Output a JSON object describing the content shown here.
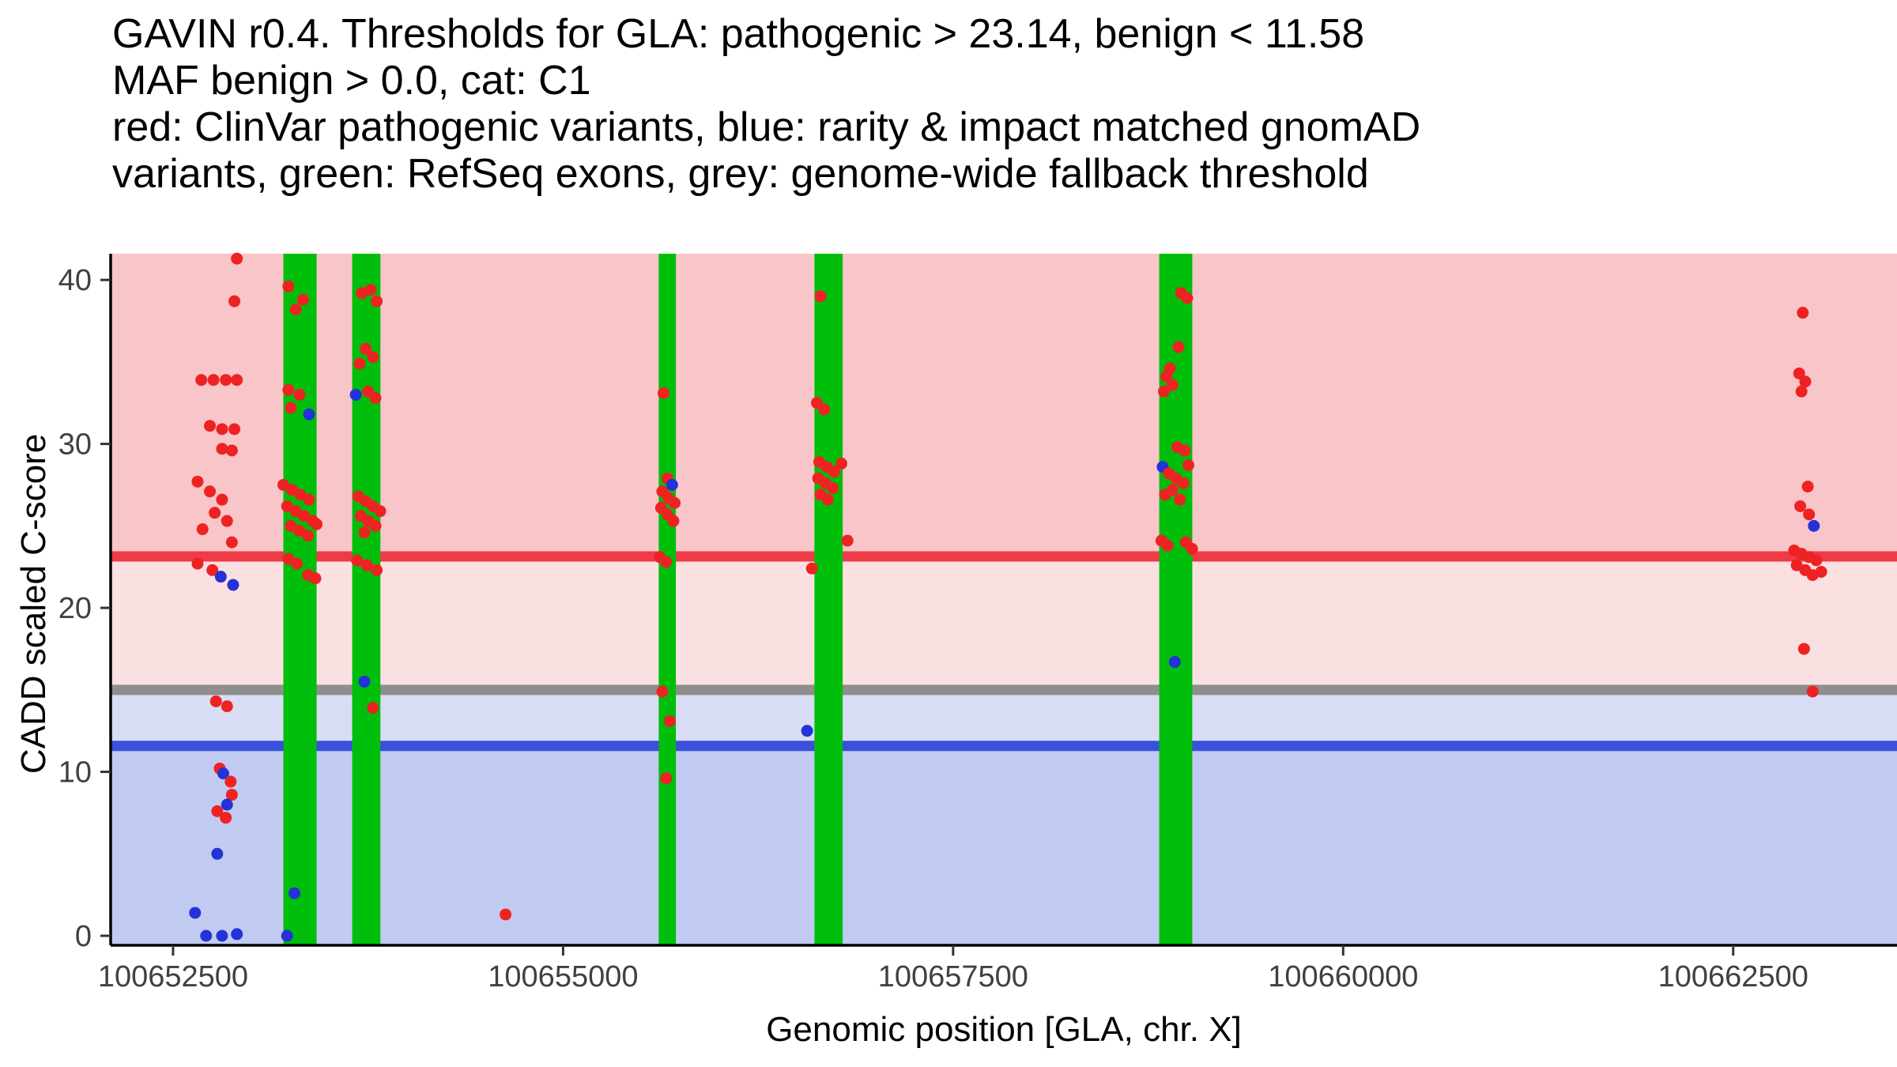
{
  "title": {
    "line1": "GAVIN r0.4. Thresholds for GLA: pathogenic > 23.14, benign < 11.58",
    "line2": "MAF benign > 0.0, cat: C1",
    "line3": "red: ClinVar pathogenic variants, blue: rarity & impact matched gnomAD",
    "line4": "variants, green: RefSeq exons, grey: genome-wide fallback threshold"
  },
  "chart_data": {
    "type": "scatter",
    "title": "GAVIN r0.4. Thresholds for GLA: pathogenic > 23.14, benign < 11.58 MAF benign > 0.0, cat: C1 red: ClinVar pathogenic variants, blue: rarity & impact matched gnomAD variants, green: RefSeq exons, grey: genome-wide fallback threshold",
    "xlabel": "Genomic position [GLA, chr. X]",
    "ylabel": "CADD scaled C-score",
    "x_ticks": [
      100652500,
      100655000,
      100657500,
      100660000,
      100662500
    ],
    "y_ticks": [
      0,
      10,
      20,
      30,
      40
    ],
    "xlim": [
      100652100,
      100663550
    ],
    "ylim": [
      0,
      41.6
    ],
    "grid": false,
    "legend_position": "none",
    "thresholds": {
      "pathogenic": {
        "label": "pathogenic threshold",
        "value": 23.14,
        "color": "#EF3B46"
      },
      "genome_wide_fallback": {
        "label": "genome-wide fallback threshold",
        "value": 15,
        "color": "#8E8E8E"
      },
      "benign": {
        "label": "benign threshold",
        "value": 11.58,
        "color": "#3A50DC"
      }
    },
    "bands": [
      {
        "name": "pathogenic-zone",
        "from": 23.14,
        "to": 41.6,
        "color": "#F8C5C8"
      },
      {
        "name": "uncertain-upper-zone",
        "from": 15,
        "to": 23.14,
        "color": "#FBE0E2"
      },
      {
        "name": "uncertain-lower-zone",
        "from": 11.58,
        "to": 15,
        "color": "#D8DDF5"
      },
      {
        "name": "benign-zone",
        "from": 0,
        "to": 11.58,
        "color": "#C1CBF1"
      }
    ],
    "exon_color": "#00BE0C",
    "exons": [
      [
        100653207,
        100653420
      ],
      [
        100653648,
        100653829
      ],
      [
        100655613,
        100655723
      ],
      [
        100656611,
        100656792
      ],
      [
        100658821,
        100659033
      ]
    ],
    "point_colors": {
      "r": "#EE2222",
      "b": "#2432D8"
    },
    "series": [
      {
        "name": "ClinVar pathogenic variants",
        "key": "r",
        "color": "#EE2222"
      },
      {
        "name": "rarity & impact matched gnomAD variants",
        "key": "b",
        "color": "#2432D8"
      }
    ],
    "points": [
      [
        100652909,
        41.3,
        "r"
      ],
      [
        100652893,
        38.7,
        "r"
      ],
      [
        100652681,
        33.9,
        "r"
      ],
      [
        100652759,
        33.9,
        "r"
      ],
      [
        100652838,
        33.9,
        "r"
      ],
      [
        100652909,
        33.9,
        "r"
      ],
      [
        100652736,
        31.1,
        "r"
      ],
      [
        100652814,
        30.9,
        "r"
      ],
      [
        100652893,
        30.9,
        "r"
      ],
      [
        100652814,
        29.7,
        "r"
      ],
      [
        100652877,
        29.6,
        "r"
      ],
      [
        100652657,
        27.7,
        "r"
      ],
      [
        100652736,
        27.1,
        "r"
      ],
      [
        100652814,
        26.6,
        "r"
      ],
      [
        100652767,
        25.8,
        "r"
      ],
      [
        100652846,
        25.3,
        "r"
      ],
      [
        100652689,
        24.8,
        "r"
      ],
      [
        100652877,
        24.0,
        "r"
      ],
      [
        100652657,
        22.7,
        "r"
      ],
      [
        100652752,
        22.3,
        "r"
      ],
      [
        100652806,
        21.9,
        "b"
      ],
      [
        100652885,
        21.4,
        "b"
      ],
      [
        100652775,
        14.3,
        "r"
      ],
      [
        100652846,
        14.0,
        "r"
      ],
      [
        100652799,
        10.2,
        "r"
      ],
      [
        100652822,
        9.9,
        "b"
      ],
      [
        100652869,
        9.4,
        "r"
      ],
      [
        100652877,
        8.6,
        "r"
      ],
      [
        100652846,
        8.0,
        "b"
      ],
      [
        100652783,
        7.6,
        "r"
      ],
      [
        100652838,
        7.2,
        "r"
      ],
      [
        100652783,
        5.0,
        "b"
      ],
      [
        100652641,
        1.4,
        "b"
      ],
      [
        100652712,
        0,
        "b"
      ],
      [
        100652814,
        0,
        "b"
      ],
      [
        100652909,
        0.1,
        "b"
      ],
      [
        100653239,
        39.6,
        "r"
      ],
      [
        100653333,
        38.8,
        "r"
      ],
      [
        100653286,
        38.2,
        "r"
      ],
      [
        100653239,
        33.3,
        "r"
      ],
      [
        100653310,
        33.0,
        "r"
      ],
      [
        100653255,
        32.2,
        "r"
      ],
      [
        100653372,
        31.8,
        "b"
      ],
      [
        100653207,
        27.5,
        "r"
      ],
      [
        100653262,
        27.2,
        "r"
      ],
      [
        100653317,
        26.9,
        "r"
      ],
      [
        100653372,
        26.6,
        "r"
      ],
      [
        100653231,
        26.2,
        "r"
      ],
      [
        100653286,
        25.9,
        "r"
      ],
      [
        100653341,
        25.6,
        "r"
      ],
      [
        100653396,
        25.3,
        "r"
      ],
      [
        100653255,
        25.0,
        "r"
      ],
      [
        100653310,
        24.7,
        "r"
      ],
      [
        100653365,
        24.4,
        "r"
      ],
      [
        100653420,
        25.1,
        "r"
      ],
      [
        100653239,
        23.0,
        "r"
      ],
      [
        100653294,
        22.7,
        "r"
      ],
      [
        100653365,
        22.0,
        "r"
      ],
      [
        100653412,
        21.8,
        "r"
      ],
      [
        100653231,
        0,
        "b"
      ],
      [
        100653278,
        2.6,
        "b"
      ],
      [
        100653710,
        39.2,
        "r"
      ],
      [
        100653766,
        39.4,
        "r"
      ],
      [
        100653805,
        38.7,
        "r"
      ],
      [
        100653734,
        35.8,
        "r"
      ],
      [
        100653781,
        35.3,
        "r"
      ],
      [
        100653695,
        34.9,
        "r"
      ],
      [
        100653671,
        33.0,
        "b"
      ],
      [
        100653750,
        33.2,
        "r"
      ],
      [
        100653797,
        32.8,
        "r"
      ],
      [
        100653687,
        26.8,
        "r"
      ],
      [
        100653734,
        26.5,
        "r"
      ],
      [
        100653781,
        26.2,
        "r"
      ],
      [
        100653828,
        25.9,
        "r"
      ],
      [
        100653703,
        25.6,
        "r"
      ],
      [
        100653750,
        25.3,
        "r"
      ],
      [
        100653797,
        25.0,
        "r"
      ],
      [
        100653726,
        24.6,
        "r"
      ],
      [
        100653679,
        22.9,
        "r"
      ],
      [
        100653742,
        22.6,
        "r"
      ],
      [
        100653805,
        22.3,
        "r"
      ],
      [
        100653726,
        15.5,
        "b"
      ],
      [
        100653781,
        13.9,
        "r"
      ],
      [
        100654631,
        1.3,
        "r"
      ],
      [
        100655644,
        33.1,
        "r"
      ],
      [
        100655668,
        27.9,
        "r"
      ],
      [
        100655699,
        27.5,
        "b"
      ],
      [
        100655636,
        27.1,
        "r"
      ],
      [
        100655676,
        26.7,
        "r"
      ],
      [
        100655715,
        26.4,
        "r"
      ],
      [
        100655628,
        26.1,
        "r"
      ],
      [
        100655668,
        25.7,
        "r"
      ],
      [
        100655707,
        25.3,
        "r"
      ],
      [
        100655620,
        23.1,
        "r"
      ],
      [
        100655660,
        22.8,
        "r"
      ],
      [
        100655636,
        14.9,
        "r"
      ],
      [
        100655684,
        13.1,
        "r"
      ],
      [
        100655660,
        9.6,
        "r"
      ],
      [
        100656650,
        39.0,
        "r"
      ],
      [
        100656627,
        32.5,
        "r"
      ],
      [
        100656674,
        32.1,
        "r"
      ],
      [
        100656642,
        28.9,
        "r"
      ],
      [
        100656690,
        28.6,
        "r"
      ],
      [
        100656737,
        28.3,
        "r"
      ],
      [
        100656635,
        27.9,
        "r"
      ],
      [
        100656682,
        27.6,
        "r"
      ],
      [
        100656729,
        27.3,
        "r"
      ],
      [
        100656650,
        26.9,
        "r"
      ],
      [
        100656697,
        26.6,
        "r"
      ],
      [
        100656784,
        28.8,
        "r"
      ],
      [
        100656823,
        24.1,
        "r"
      ],
      [
        100656595,
        22.4,
        "r"
      ],
      [
        100656564,
        12.5,
        "b"
      ],
      [
        100658961,
        39.2,
        "r"
      ],
      [
        100659000,
        38.9,
        "r"
      ],
      [
        100658945,
        35.9,
        "r"
      ],
      [
        100658890,
        34.6,
        "r"
      ],
      [
        100658867,
        34.1,
        "r"
      ],
      [
        100658906,
        33.6,
        "r"
      ],
      [
        100658851,
        33.2,
        "r"
      ],
      [
        100658937,
        29.8,
        "r"
      ],
      [
        100658984,
        29.6,
        "r"
      ],
      [
        100658843,
        28.6,
        "b"
      ],
      [
        100658882,
        28.2,
        "r"
      ],
      [
        100658929,
        27.9,
        "r"
      ],
      [
        100658976,
        27.6,
        "r"
      ],
      [
        100659008,
        28.7,
        "r"
      ],
      [
        100658906,
        27.2,
        "r"
      ],
      [
        100658859,
        26.9,
        "r"
      ],
      [
        100658953,
        26.6,
        "r"
      ],
      [
        100658835,
        24.1,
        "r"
      ],
      [
        100658874,
        23.8,
        "r"
      ],
      [
        100658992,
        24.0,
        "r"
      ],
      [
        100659031,
        23.6,
        "r"
      ],
      [
        100658921,
        16.7,
        "b"
      ],
      [
        100662946,
        38.0,
        "r"
      ],
      [
        100662923,
        34.3,
        "r"
      ],
      [
        100662962,
        33.8,
        "r"
      ],
      [
        100662938,
        33.2,
        "r"
      ],
      [
        100662978,
        27.4,
        "r"
      ],
      [
        100662930,
        26.2,
        "r"
      ],
      [
        100662986,
        25.7,
        "r"
      ],
      [
        100663017,
        25.0,
        "b"
      ],
      [
        100662891,
        23.5,
        "r"
      ],
      [
        100662938,
        23.3,
        "r"
      ],
      [
        100662986,
        23.1,
        "r"
      ],
      [
        100663033,
        22.9,
        "r"
      ],
      [
        100662907,
        22.6,
        "r"
      ],
      [
        100662962,
        22.3,
        "r"
      ],
      [
        100663009,
        22.0,
        "r"
      ],
      [
        100663064,
        22.2,
        "r"
      ],
      [
        100662954,
        17.5,
        "r"
      ],
      [
        100663009,
        14.9,
        "r"
      ]
    ]
  }
}
